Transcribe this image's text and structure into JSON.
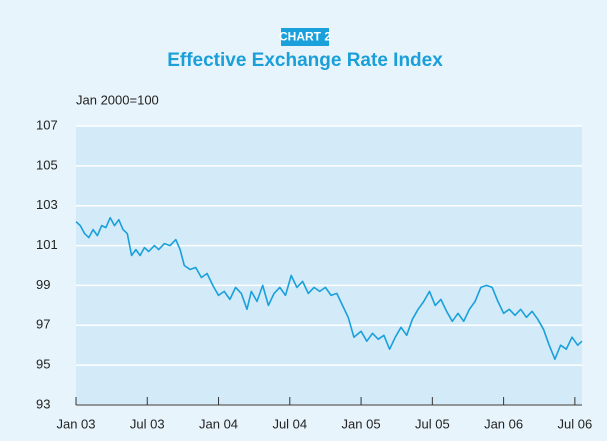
{
  "chart_data": {
    "type": "line",
    "badge": "CHART 2",
    "title": "Effective Exchange Rate Index",
    "y_label": "Jan 2000=100",
    "series": [
      {
        "name": "Effective Exchange Rate Index",
        "color": "#1aa0db",
        "x": [
          2003.0,
          2003.03,
          2003.06,
          2003.09,
          2003.12,
          2003.15,
          2003.18,
          2003.21,
          2003.24,
          2003.27,
          2003.3,
          2003.33,
          2003.36,
          2003.39,
          2003.42,
          2003.45,
          2003.48,
          2003.51,
          2003.55,
          2003.58,
          2003.62,
          2003.66,
          2003.7,
          2003.73,
          2003.76,
          2003.8,
          2003.84,
          2003.88,
          2003.92,
          2003.96,
          2004.0,
          2004.04,
          2004.08,
          2004.12,
          2004.16,
          2004.2,
          2004.23,
          2004.27,
          2004.31,
          2004.35,
          2004.39,
          2004.43,
          2004.47,
          2004.51,
          2004.55,
          2004.59,
          2004.63,
          2004.67,
          2004.71,
          2004.75,
          2004.79,
          2004.83,
          2004.87,
          2004.91,
          2004.95,
          2005.0,
          2005.04,
          2005.08,
          2005.12,
          2005.16,
          2005.2,
          2005.24,
          2005.28,
          2005.32,
          2005.36,
          2005.4,
          2005.44,
          2005.48,
          2005.52,
          2005.56,
          2005.6,
          2005.64,
          2005.68,
          2005.72,
          2005.76,
          2005.8,
          2005.84,
          2005.88,
          2005.92,
          2005.96,
          2006.0,
          2006.04,
          2006.08,
          2006.12,
          2006.16,
          2006.2,
          2006.24,
          2006.28,
          2006.32,
          2006.36,
          2006.4,
          2006.44,
          2006.48,
          2006.52,
          2006.55
        ],
        "values": [
          102.2,
          102.0,
          101.6,
          101.4,
          101.8,
          101.5,
          102.0,
          101.9,
          102.4,
          102.0,
          102.3,
          101.8,
          101.6,
          100.5,
          100.8,
          100.5,
          100.9,
          100.7,
          101.0,
          100.8,
          101.1,
          101.0,
          101.3,
          100.8,
          100.0,
          99.8,
          99.9,
          99.4,
          99.6,
          99.0,
          98.5,
          98.7,
          98.3,
          98.9,
          98.6,
          97.8,
          98.7,
          98.2,
          99.0,
          98.0,
          98.6,
          98.9,
          98.5,
          99.5,
          98.9,
          99.2,
          98.6,
          98.9,
          98.7,
          98.9,
          98.5,
          98.6,
          98.0,
          97.4,
          96.4,
          96.7,
          96.2,
          96.6,
          96.3,
          96.5,
          95.8,
          96.4,
          96.9,
          96.5,
          97.3,
          97.8,
          98.2,
          98.7,
          98.0,
          98.3,
          97.7,
          97.2,
          97.6,
          97.2,
          97.8,
          98.2,
          98.9,
          99.0,
          98.9,
          98.2,
          97.6,
          97.8,
          97.5,
          97.8,
          97.4,
          97.7,
          97.3,
          96.8,
          96.0,
          95.3,
          96.0,
          95.8,
          96.4,
          96.0,
          96.2
        ]
      }
    ],
    "xlim": [
      2003.0,
      2006.55
    ],
    "xticks": [
      {
        "value": 2003.0,
        "label": "Jan 03"
      },
      {
        "value": 2003.5,
        "label": "Jul 03"
      },
      {
        "value": 2004.0,
        "label": "Jan 04"
      },
      {
        "value": 2004.5,
        "label": "Jul 04"
      },
      {
        "value": 2005.0,
        "label": "Jan 05"
      },
      {
        "value": 2005.5,
        "label": "Jul 05"
      },
      {
        "value": 2006.0,
        "label": "Jan 06"
      },
      {
        "value": 2006.5,
        "label": "Jul 06"
      }
    ],
    "ylim": [
      93,
      107
    ],
    "yticks": [
      93,
      95,
      97,
      99,
      101,
      103,
      105,
      107
    ],
    "grid": true
  }
}
